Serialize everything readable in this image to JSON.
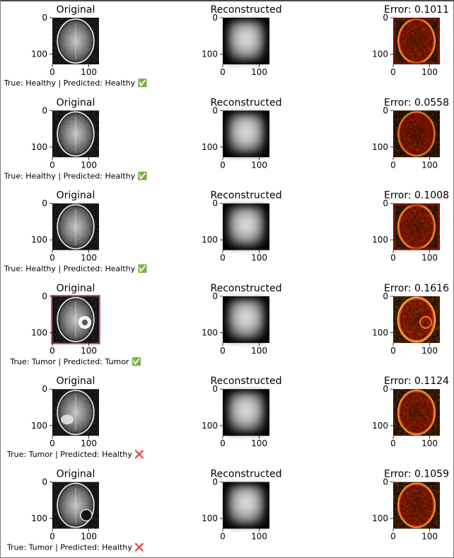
{
  "chart_data": {
    "type": "image-grid",
    "column_titles": [
      "Original",
      "Reconstructed"
    ],
    "image_axis": {
      "xlim": [
        0,
        128
      ],
      "ylim": [
        0,
        128
      ],
      "xticks": [
        "0",
        "100"
      ],
      "yticks": [
        "0",
        "100"
      ]
    },
    "rows": [
      {
        "error_title": "Error: 0.1011",
        "error": 0.1011,
        "caption": "True: Healthy | Predicted: Healthy ✅",
        "true_label": "Healthy",
        "predicted_label": "Healthy",
        "highlight": false
      },
      {
        "error_title": "Error: 0.0558",
        "error": 0.0558,
        "caption": "True: Healthy | Predicted: Healthy ✅",
        "true_label": "Healthy",
        "predicted_label": "Healthy",
        "highlight": false
      },
      {
        "error_title": "Error: 0.1008",
        "error": 0.1008,
        "caption": "True: Healthy | Predicted: Healthy ✅",
        "true_label": "Healthy",
        "predicted_label": "Healthy",
        "highlight": false
      },
      {
        "error_title": "Error: 0.1616",
        "error": 0.1616,
        "caption": "True: Tumor | Predicted: Tumor ✅",
        "true_label": "Tumor",
        "predicted_label": "Tumor",
        "highlight": true
      },
      {
        "error_title": "Error: 0.1124",
        "error": 0.1124,
        "caption": "True: Tumor | Predicted: Healthy ❌",
        "true_label": "Tumor",
        "predicted_label": "Healthy",
        "highlight": false
      },
      {
        "error_title": "Error: 0.1059",
        "error": 0.1059,
        "caption": "True: Tumor | Predicted: Healthy ❌",
        "true_label": "Tumor",
        "predicted_label": "Healthy",
        "highlight": false
      }
    ],
    "colors": {
      "highlight_border": "#d62728",
      "background": "#000000",
      "error_colormap": [
        "#000000",
        "#8b0000",
        "#ff2000",
        "#ffb000",
        "#ffffd0"
      ],
      "image_colormap": [
        "#000000",
        "#ffffff"
      ]
    }
  }
}
